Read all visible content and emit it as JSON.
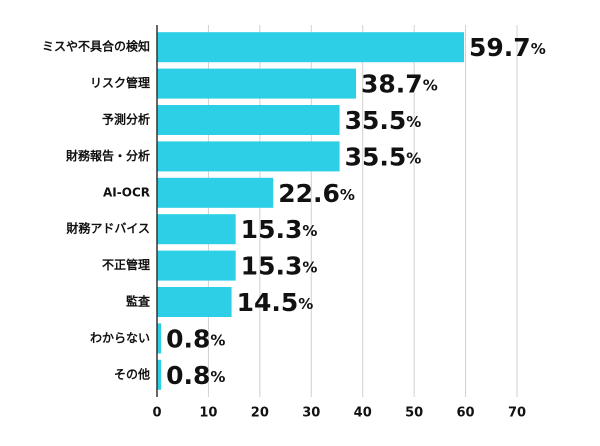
{
  "chart_data": {
    "type": "bar",
    "orientation": "horizontal",
    "categories": [
      "ミスや不具合の検知",
      "リスク管理",
      "予測分析",
      "財務報告・分析",
      "AI-OCR",
      "財務アドバイス",
      "不正管理",
      "監査",
      "わからない",
      "その他"
    ],
    "values": [
      59.7,
      38.7,
      35.5,
      35.5,
      22.6,
      15.3,
      15.3,
      14.5,
      0.8,
      0.8
    ],
    "value_labels": [
      "59.7%",
      "38.7%",
      "35.5%",
      "35.5%",
      "22.6%",
      "15.3%",
      "15.3%",
      "14.5%",
      "0.8%",
      "0.8%"
    ],
    "color": "#2ccfe6",
    "xlim": [
      0,
      70
    ],
    "xticks": [
      0,
      10,
      20,
      30,
      40,
      50,
      60,
      70
    ],
    "grid": true
  }
}
